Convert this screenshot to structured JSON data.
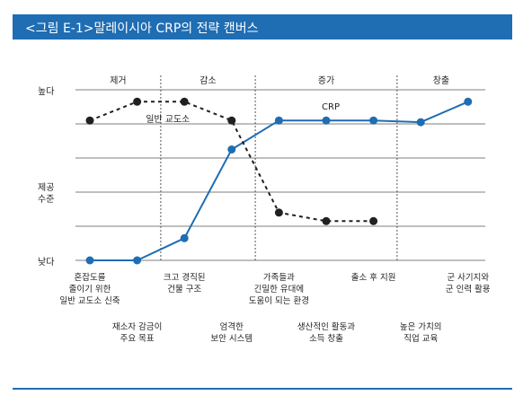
{
  "header": {
    "title": "<그림 E-1>말레이시아 CRP의 전략 캔버스"
  },
  "colors": {
    "header_bg": "#1f6db3",
    "crp_line": "#1f6db3",
    "prison_line": "#231f20",
    "grid": "#7f7f7f"
  },
  "chart_data": {
    "type": "line",
    "title": "",
    "ylabel": "",
    "y_axis_labels": {
      "high": "높다",
      "mid": [
        "제공",
        "수준"
      ],
      "low": "낮다"
    },
    "ylim": [
      0,
      5
    ],
    "grid": true,
    "sections": [
      {
        "label": "제거",
        "start": 0,
        "end": 1
      },
      {
        "label": "감소",
        "start": 2,
        "end": 3
      },
      {
        "label": "증가",
        "start": 4,
        "end": 6
      },
      {
        "label": "창출",
        "start": 7,
        "end": 8
      }
    ],
    "categories": [
      [
        "혼잡도를",
        "줄이기 위한",
        "일반 교도소 신축"
      ],
      [
        "재소자 감금이",
        "주요 목표"
      ],
      [
        "크고 경직된",
        "건물 구조"
      ],
      [
        "엄격한",
        "보안 시스템"
      ],
      [
        "가족들과",
        "긴밀한 유대에",
        "도움이 되는 환경"
      ],
      [
        "생산적인 활동과",
        "소득 창출"
      ],
      [
        "출소 후 지원"
      ],
      [
        "높은 가치의",
        "직업 교육"
      ],
      [
        "군 사기지와",
        "군 인력 활용"
      ]
    ],
    "category_rows": [
      0,
      1,
      0,
      1,
      0,
      1,
      0,
      1,
      0
    ],
    "series": [
      {
        "name": "CRP",
        "values": [
          0,
          0,
          0.65,
          3.25,
          4.1,
          4.1,
          4.1,
          4.05,
          4.65
        ]
      },
      {
        "name": "일반 교도소",
        "values": [
          4.1,
          4.65,
          4.65,
          4.1,
          1.4,
          1.15,
          1.15,
          null,
          null
        ]
      }
    ]
  }
}
